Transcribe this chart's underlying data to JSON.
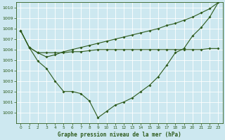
{
  "title": "Graphe pression niveau de la mer (hPa)",
  "background_color": "#cde8f0",
  "grid_color": "#b0d4dc",
  "line_color": "#2d5a1b",
  "xlim": [
    -0.5,
    23.5
  ],
  "ylim": [
    999.0,
    1010.5
  ],
  "ytick_vals": [
    1000,
    1001,
    1002,
    1003,
    1004,
    1005,
    1006,
    1007,
    1008,
    1009,
    1010
  ],
  "xtick_vals": [
    0,
    1,
    2,
    3,
    4,
    5,
    6,
    7,
    8,
    9,
    10,
    11,
    12,
    13,
    14,
    15,
    16,
    17,
    18,
    19,
    20,
    21,
    22,
    23
  ],
  "line1_x": [
    0,
    1,
    2,
    3,
    4,
    5,
    6,
    7,
    8,
    9,
    10,
    11,
    12,
    13,
    14,
    15,
    16,
    17,
    18,
    19,
    20,
    21,
    22,
    23
  ],
  "line1_y": [
    1007.8,
    1006.2,
    1005.7,
    1005.7,
    1005.7,
    1005.7,
    1005.8,
    1005.8,
    1005.9,
    1006.0,
    1006.0,
    1006.0,
    1006.0,
    1006.0,
    1006.0,
    1006.0,
    1006.0,
    1006.0,
    1006.0,
    1006.0,
    1006.0,
    1006.0,
    1006.1,
    1006.1
  ],
  "line2_x": [
    0,
    1,
    2,
    3,
    4,
    5,
    6,
    7,
    8,
    9,
    10,
    11,
    12,
    13,
    14,
    15,
    16,
    17,
    18,
    19,
    20,
    21,
    22,
    23
  ],
  "line2_y": [
    1007.8,
    1006.2,
    1004.9,
    1004.2,
    1003.0,
    1002.0,
    1002.0,
    1001.8,
    1001.1,
    999.5,
    1000.1,
    1000.7,
    1001.0,
    1001.4,
    1002.0,
    1002.6,
    1003.4,
    1004.5,
    1005.7,
    1006.1,
    1007.3,
    1008.1,
    1009.1,
    1010.5
  ],
  "line3_x": [
    0,
    1,
    2,
    3,
    4,
    5,
    6,
    7,
    8,
    9,
    10,
    11,
    12,
    13,
    14,
    15,
    16,
    17,
    18,
    19,
    20,
    21,
    22,
    23
  ],
  "line3_y": [
    1007.8,
    1006.2,
    1005.7,
    1005.3,
    1005.5,
    1005.8,
    1006.0,
    1006.2,
    1006.4,
    1006.6,
    1006.8,
    1007.0,
    1007.2,
    1007.4,
    1007.6,
    1007.8,
    1008.0,
    1008.3,
    1008.5,
    1008.8,
    1009.1,
    1009.5,
    1009.9,
    1010.5
  ]
}
